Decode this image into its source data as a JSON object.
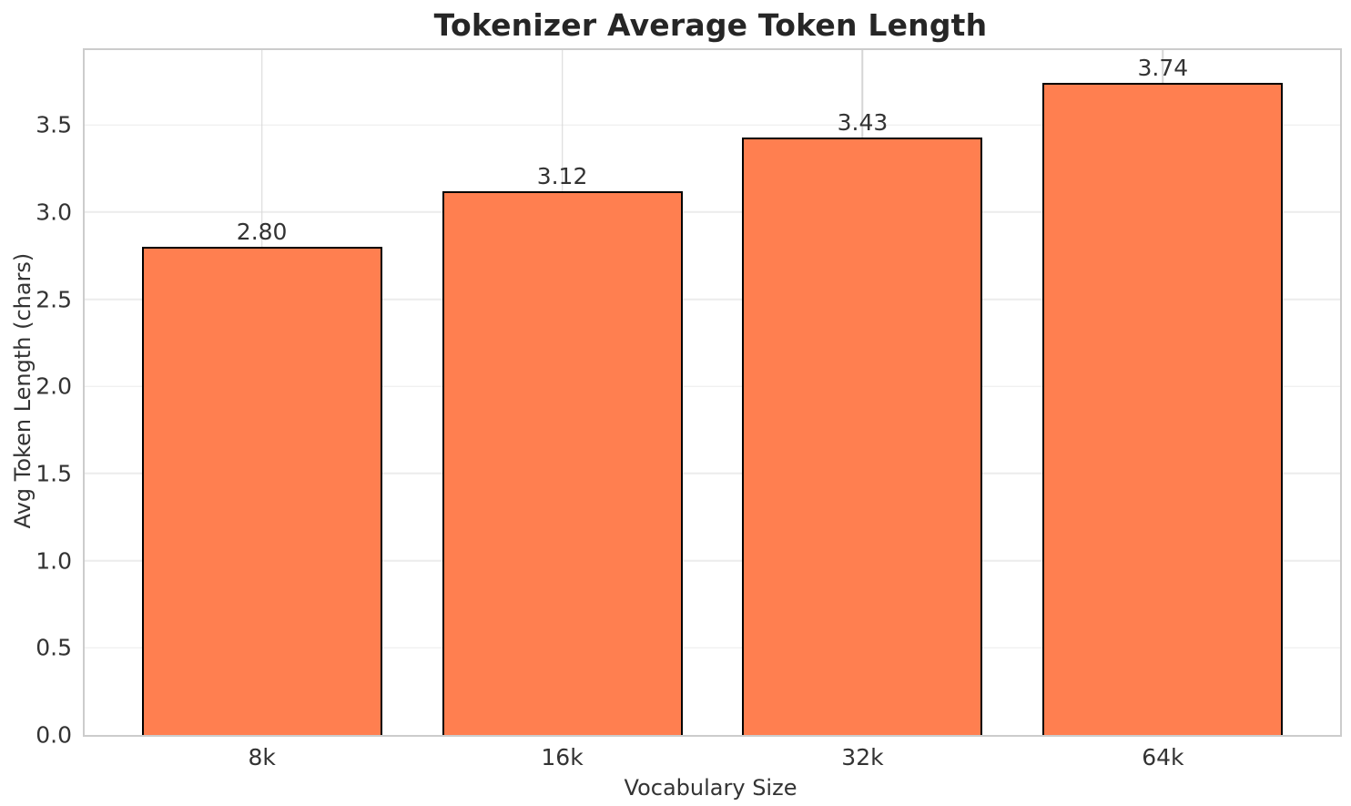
{
  "chart_data": {
    "type": "bar",
    "title": "Tokenizer Average Token Length",
    "xlabel": "Vocabulary Size",
    "ylabel": "Avg Token Length (chars)",
    "categories": [
      "8k",
      "16k",
      "32k",
      "64k"
    ],
    "values": [
      2.8,
      3.12,
      3.43,
      3.74
    ],
    "value_labels": [
      "2.80",
      "3.12",
      "3.43",
      "3.74"
    ],
    "yticks": [
      0.0,
      0.5,
      1.0,
      1.5,
      2.0,
      2.5,
      3.0,
      3.5
    ],
    "ytick_labels": [
      "0.0",
      "0.5",
      "1.0",
      "1.5",
      "2.0",
      "2.5",
      "3.0",
      "3.5"
    ],
    "ylim": [
      0,
      3.93
    ],
    "grid": true,
    "legend": "none",
    "bar_color": "#ff7f50",
    "bar_edge_color": "#000000",
    "bar_width_fraction": 0.8
  }
}
